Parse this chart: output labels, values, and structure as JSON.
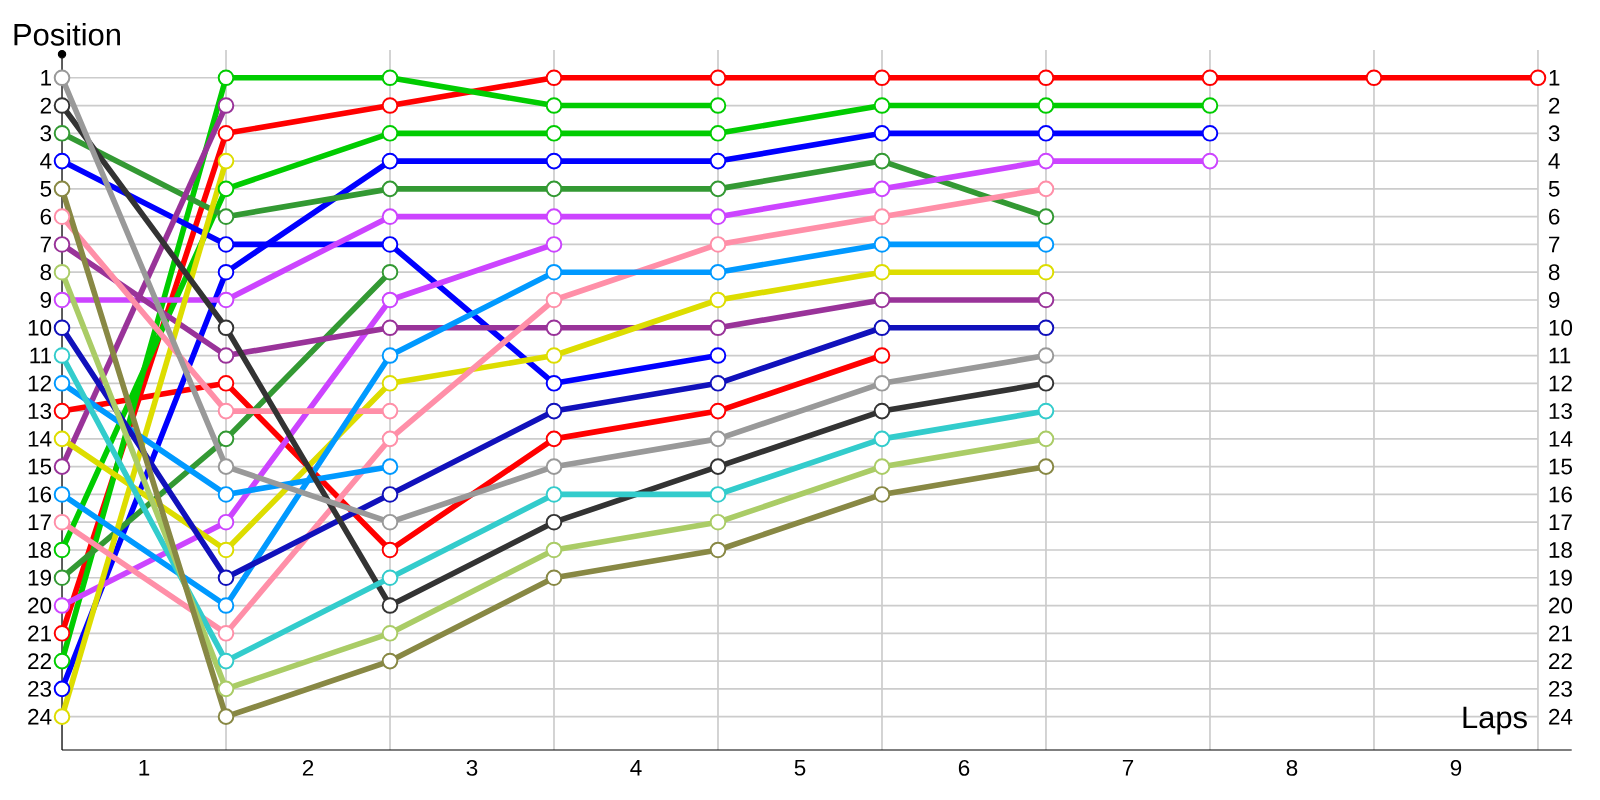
{
  "chart_data": {
    "type": "line",
    "xlabel": "Laps",
    "ylabel": "Position",
    "x": [
      0,
      1,
      2,
      3,
      4,
      5,
      6,
      7,
      8,
      9
    ],
    "xlim": [
      0,
      9
    ],
    "xticks": [
      {
        "value": 0,
        "label": null
      },
      {
        "value": 1,
        "label": null
      },
      {
        "value": 2,
        "label": null
      },
      {
        "value": 3,
        "label": null
      },
      {
        "value": 4,
        "label": null
      },
      {
        "value": 5,
        "label": null
      },
      {
        "value": 6,
        "label": null
      },
      {
        "value": 7,
        "label": null
      },
      {
        "value": 8,
        "label": null
      },
      {
        "value": 9,
        "label": null
      },
      {
        "value": 0.5,
        "label": "1"
      },
      {
        "value": 1.5,
        "label": "2"
      },
      {
        "value": 2.5,
        "label": "3"
      },
      {
        "value": 3.5,
        "label": "4"
      },
      {
        "value": 4.5,
        "label": "5"
      },
      {
        "value": 5.5,
        "label": "6"
      },
      {
        "value": 6.5,
        "label": "7"
      },
      {
        "value": 7.5,
        "label": "8"
      },
      {
        "value": 8.5,
        "label": "9"
      }
    ],
    "ylim": [
      25.2,
      0
    ],
    "yticks": [
      1,
      2,
      3,
      4,
      5,
      6,
      7,
      8,
      9,
      10,
      11,
      12,
      13,
      14,
      15,
      16,
      17,
      18,
      19,
      20,
      21,
      22,
      23,
      24
    ],
    "y2lim": [
      25.2,
      0
    ],
    "y2ticks": [
      1,
      2,
      3,
      4,
      5,
      6,
      7,
      8,
      9,
      10,
      11,
      12,
      13,
      14,
      15,
      16,
      17,
      18,
      19,
      20,
      21,
      22,
      23,
      24
    ],
    "grid": true,
    "marker": "circle",
    "line_style": "solid",
    "series": [
      {
        "color": "#ff0000",
        "values": [
          21,
          3,
          2,
          1,
          1,
          1,
          1,
          1,
          1,
          1
        ]
      },
      {
        "color": "#ff0000",
        "values": [
          13,
          12,
          18,
          14,
          13,
          11,
          null,
          null,
          null,
          null
        ]
      },
      {
        "color": "#00cc00",
        "values": [
          22,
          1,
          1,
          2,
          2,
          null,
          null,
          null,
          null,
          null
        ]
      },
      {
        "color": "#00cc00",
        "values": [
          18,
          5,
          3,
          3,
          3,
          2,
          2,
          2,
          null,
          null
        ]
      },
      {
        "color": "#0000ff",
        "values": [
          4,
          7,
          7,
          12,
          11,
          null,
          null,
          null,
          null,
          null
        ]
      },
      {
        "color": "#0000ff",
        "values": [
          23,
          8,
          4,
          4,
          4,
          3,
          3,
          3,
          null,
          null
        ]
      },
      {
        "color": "#339933",
        "values": [
          3,
          6,
          5,
          5,
          5,
          4,
          6,
          null,
          null,
          null
        ]
      },
      {
        "color": "#339933",
        "values": [
          19,
          14,
          8,
          null,
          null,
          null,
          null,
          null,
          null,
          null
        ]
      },
      {
        "color": "#cc44ff",
        "values": [
          9,
          9,
          6,
          6,
          6,
          5,
          4,
          4,
          null,
          null
        ]
      },
      {
        "color": "#cc44ff",
        "values": [
          20,
          17,
          9,
          7,
          null,
          null,
          null,
          null,
          null,
          null
        ]
      },
      {
        "color": "#993399",
        "values": [
          15,
          2,
          null,
          null,
          null,
          null,
          null,
          null,
          null,
          null
        ]
      },
      {
        "color": "#993399",
        "values": [
          7,
          11,
          10,
          10,
          10,
          9,
          9,
          null,
          null,
          null
        ]
      },
      {
        "color": "#dddd00",
        "values": [
          24,
          4,
          null,
          null,
          null,
          null,
          null,
          null,
          null,
          null
        ]
      },
      {
        "color": "#dddd00",
        "values": [
          14,
          18,
          12,
          11,
          9,
          8,
          8,
          null,
          null,
          null
        ]
      },
      {
        "color": "#ff8fa8",
        "values": [
          6,
          13,
          13,
          null,
          null,
          null,
          null,
          null,
          null,
          null
        ]
      },
      {
        "color": "#ff8fa8",
        "values": [
          17,
          21,
          14,
          9,
          7,
          6,
          5,
          null,
          null,
          null
        ]
      },
      {
        "color": "#0099ff",
        "values": [
          12,
          16,
          15,
          null,
          null,
          null,
          null,
          null,
          null,
          null
        ]
      },
      {
        "color": "#0099ff",
        "values": [
          16,
          20,
          11,
          8,
          8,
          7,
          7,
          null,
          null,
          null
        ]
      },
      {
        "color": "#1111bb",
        "values": [
          10,
          19,
          16,
          13,
          12,
          10,
          10,
          null,
          null,
          null
        ]
      },
      {
        "color": "#333333",
        "values": [
          2,
          10,
          20,
          17,
          15,
          13,
          12,
          null,
          null,
          null
        ]
      },
      {
        "color": "#999999",
        "values": [
          1,
          15,
          17,
          15,
          14,
          12,
          11,
          null,
          null,
          null
        ]
      },
      {
        "color": "#33cccc",
        "values": [
          11,
          22,
          19,
          16,
          16,
          14,
          13,
          null,
          null,
          null
        ]
      },
      {
        "color": "#aacc66",
        "values": [
          8,
          23,
          21,
          18,
          17,
          15,
          14,
          null,
          null,
          null
        ]
      },
      {
        "color": "#888844",
        "values": [
          5,
          24,
          22,
          19,
          18,
          16,
          15,
          null,
          null,
          null
        ]
      }
    ]
  }
}
